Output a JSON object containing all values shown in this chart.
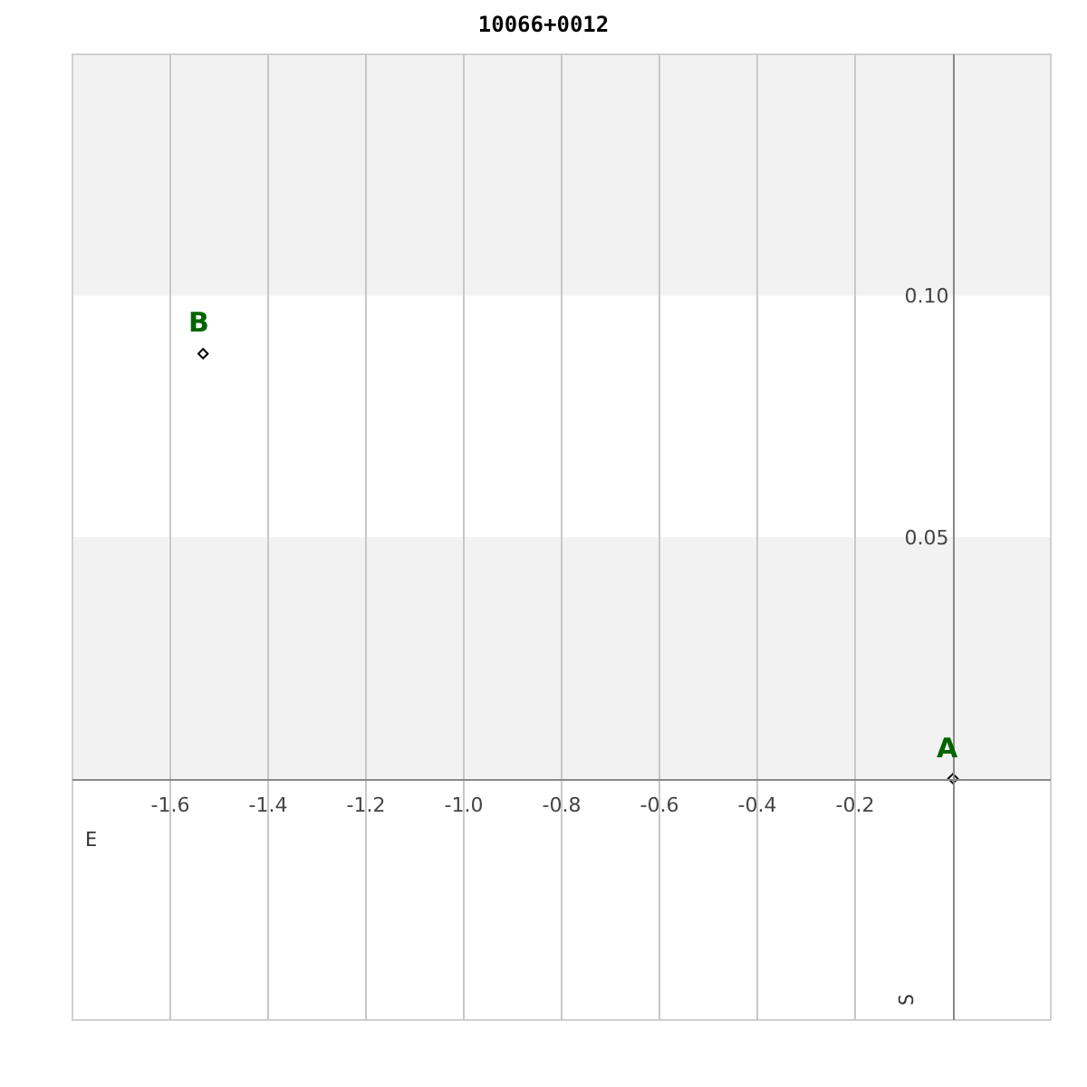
{
  "chart_data": {
    "type": "scatter",
    "title": "10066+0012",
    "xlabel": "E",
    "ylabel": "S",
    "x": [
      0,
      -1.533
    ],
    "series": [
      {
        "color": "#000000",
        "values": [
          0,
          0.088
        ]
      }
    ],
    "marker": "diamond",
    "xlim": [
      -1.8,
      0.2
    ],
    "ylim": [
      -0.05,
      0.15
    ],
    "xticks": [
      -1.6,
      -1.4,
      -1.2,
      {
        "value": -1,
        "label": "-1.0"
      },
      -0.8,
      -0.6,
      -0.4,
      -0.2
    ],
    "yticks": [
      0.05,
      {
        "value": 0.1,
        "label": "0.10"
      }
    ],
    "grid": "x",
    "bands": [
      {
        "axis": "y",
        "from": 0,
        "to": 0.05,
        "color": "#f2f2f2"
      },
      {
        "axis": "y",
        "from": 0.1,
        "to": 0.15,
        "color": "#f2f2f2"
      }
    ],
    "annotations": [
      {
        "text": "A",
        "x": 0,
        "y": 0
      },
      {
        "text": "B",
        "x": -1.533,
        "y": 0.088
      }
    ]
  }
}
